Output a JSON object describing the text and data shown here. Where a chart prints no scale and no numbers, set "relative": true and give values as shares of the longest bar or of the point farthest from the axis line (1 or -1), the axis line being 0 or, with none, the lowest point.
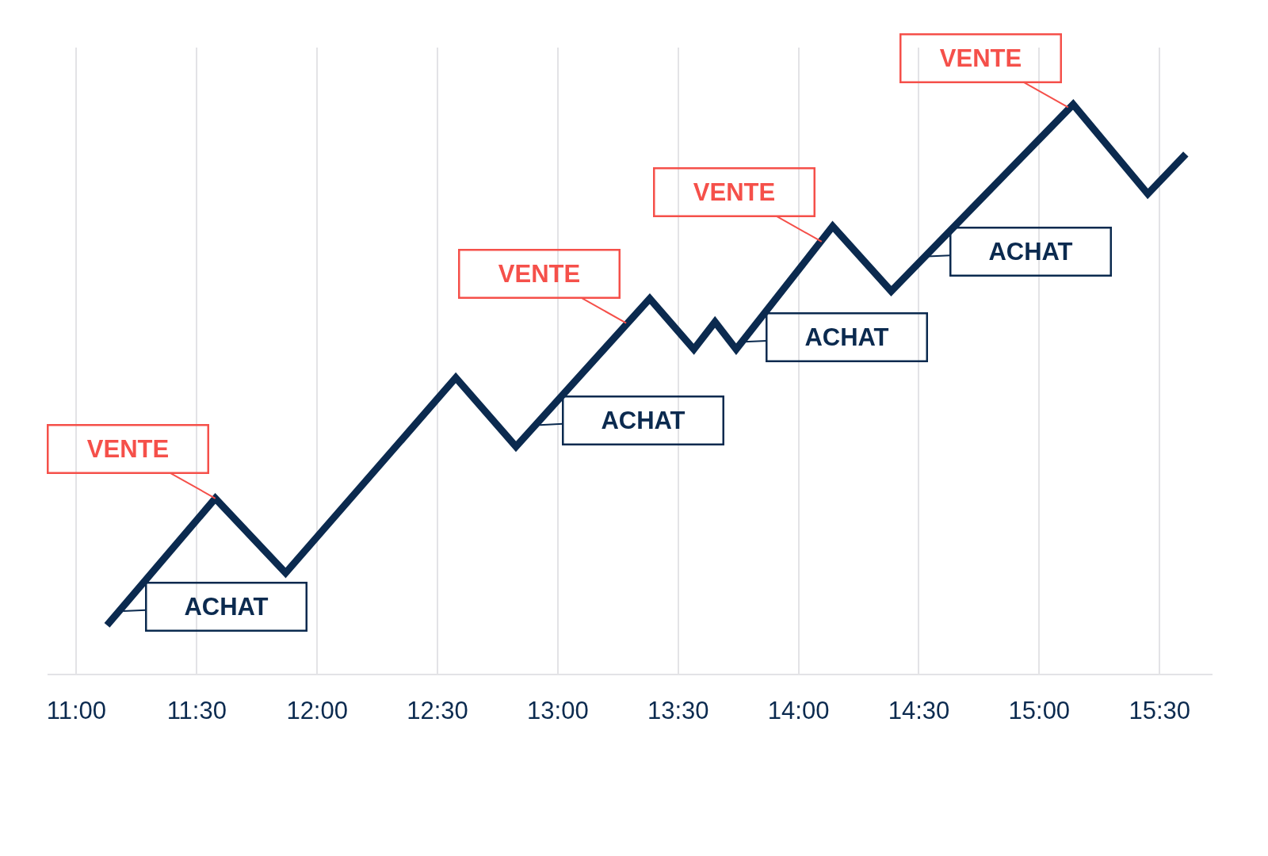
{
  "chart_data": {
    "type": "line",
    "relative": true,
    "x": [
      11.127,
      11.577,
      11.869,
      12.576,
      12.826,
      13.382,
      13.565,
      13.653,
      13.741,
      14.142,
      14.385,
      15.141,
      15.451,
      15.609
    ],
    "series": [
      {
        "color": "#0b2a4f",
        "values": [
          0.085,
          0.308,
          0.177,
          0.52,
          0.399,
          0.659,
          0.57,
          0.618,
          0.57,
          0.786,
          0.672,
          1,
          0.843,
          0.913
        ]
      }
    ],
    "xlim": [
      10.88,
      15.72
    ],
    "xticks": [
      {
        "value": 11,
        "label": "11:00"
      },
      {
        "value": 11.5,
        "label": "11:30"
      },
      {
        "value": 12,
        "label": "12:00"
      },
      {
        "value": 12.5,
        "label": "12:30"
      },
      {
        "value": 13,
        "label": "13:00"
      },
      {
        "value": 13.5,
        "label": "13:30"
      },
      {
        "value": 14,
        "label": "14:00"
      },
      {
        "value": 14.5,
        "label": "14:30"
      },
      {
        "value": 15,
        "label": "15:00"
      },
      {
        "value": 15.5,
        "label": "15:30"
      }
    ],
    "grid": "x",
    "legend": false,
    "marker": "none",
    "line_style": "solid",
    "annotations": [
      {
        "text": "VENTE",
        "x": 11.577,
        "y": 0.308
      },
      {
        "text": "ACHAT",
        "x": 11.194,
        "y": 0.11
      },
      {
        "text": "VENTE",
        "x": 13.284,
        "y": 0.616
      },
      {
        "text": "ACHAT",
        "x": 12.925,
        "y": 0.437
      },
      {
        "text": "VENTE",
        "x": 14.096,
        "y": 0.759
      },
      {
        "text": "ACHAT",
        "x": 13.773,
        "y": 0.583
      },
      {
        "text": "VENTE",
        "x": 15.12,
        "y": 0.995
      },
      {
        "text": "ACHAT",
        "x": 14.536,
        "y": 0.733
      }
    ]
  }
}
